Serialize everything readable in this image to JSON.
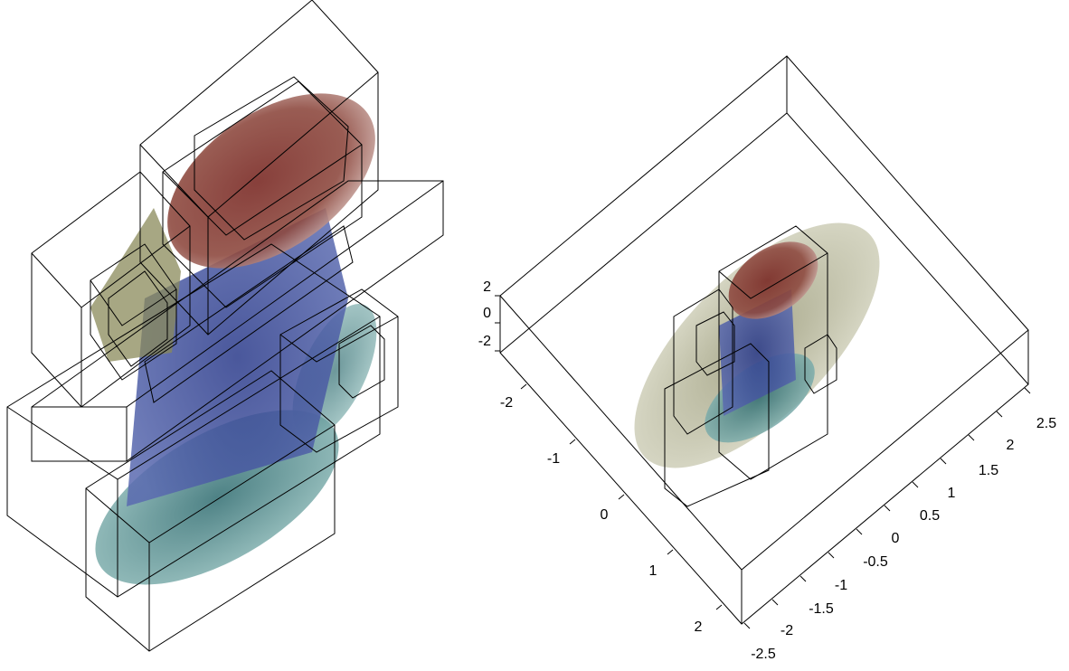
{
  "right_plot": {
    "z_ticks": [
      "2",
      "0",
      "-2"
    ],
    "x_ticks": [
      "-2",
      "-1",
      "0",
      "1",
      "2"
    ],
    "y_ticks": [
      "2.5",
      "2",
      "1.5",
      "1",
      "0.5",
      "0",
      "-0.5",
      "-1",
      "-1.5",
      "-2",
      "-2.5"
    ]
  }
}
